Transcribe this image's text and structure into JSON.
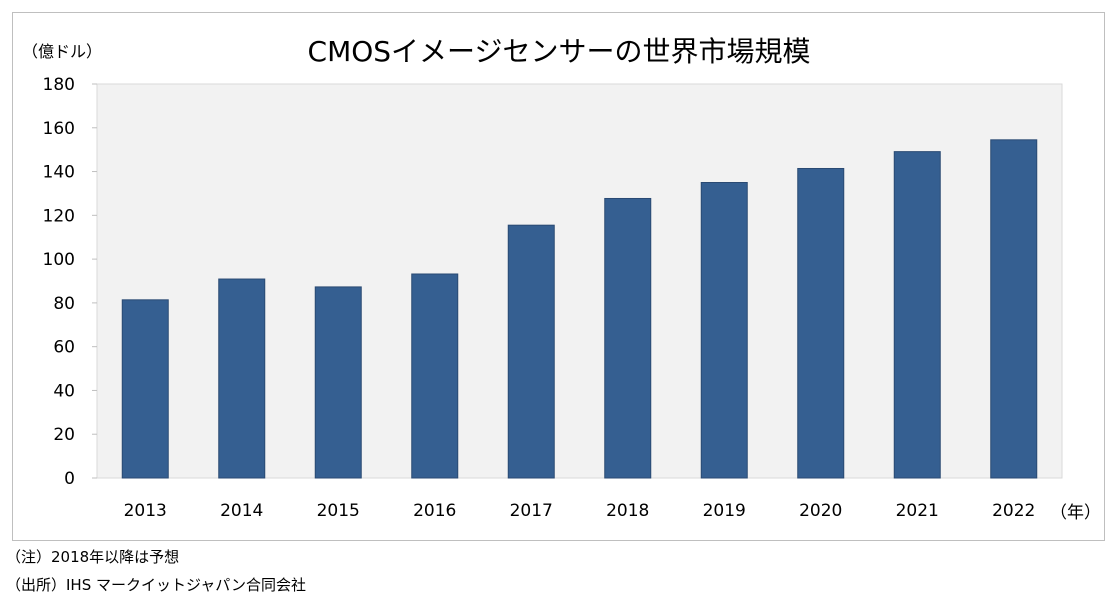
{
  "chart_data": {
    "type": "bar",
    "title": "CMOSイメージセンサーの世界市場規模",
    "ylabel": "（億ドル）",
    "xlabel": "（年）",
    "categories": [
      "2013",
      "2014",
      "2015",
      "2016",
      "2017",
      "2018",
      "2019",
      "2020",
      "2021",
      "2022"
    ],
    "values": [
      81.4,
      90.9,
      87.3,
      93.2,
      115.5,
      127.7,
      135,
      141.4,
      149.1,
      154.5
    ],
    "ylim": [
      0,
      180
    ],
    "yticks": [
      "0",
      "20",
      "40",
      "60",
      "80",
      "100",
      "120",
      "140",
      "160",
      "180"
    ],
    "grid": false,
    "bar_color": "#355f91",
    "plot_bg": "#f2f2f2"
  },
  "notes": [
    "（注）2018年以降は予想",
    "（出所）IHS マークイットジャパン合同会社"
  ]
}
